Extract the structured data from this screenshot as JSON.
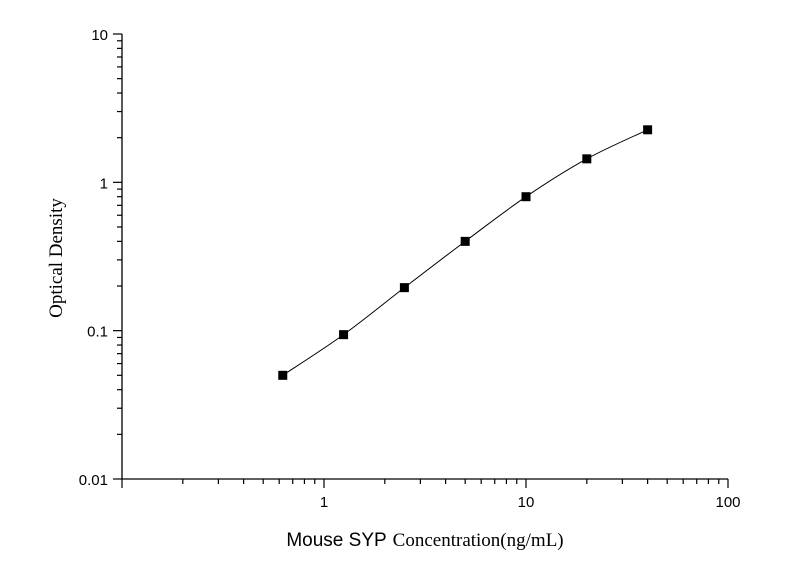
{
  "chart_data": {
    "type": "scatter",
    "xlabel_main": "Mouse SYP",
    "xlabel_sub": "Concentration(ng/mL)",
    "ylabel": "Optical Density",
    "xscale": "log",
    "yscale": "log",
    "xlim": [
      0.1,
      100
    ],
    "ylim": [
      0.01,
      10
    ],
    "x_tick_labels": [
      {
        "value": 1,
        "label": "1"
      },
      {
        "value": 10,
        "label": "10"
      },
      {
        "value": 100,
        "label": "100"
      }
    ],
    "y_tick_labels": [
      {
        "value": 0.01,
        "label": "0.01"
      },
      {
        "value": 0.1,
        "label": "0.1"
      },
      {
        "value": 1,
        "label": "1"
      },
      {
        "value": 10,
        "label": "10"
      }
    ],
    "grid": false,
    "legend": false,
    "marker": "square",
    "series": [
      {
        "x": [
          0.625,
          1.25,
          2.5,
          5,
          10,
          20,
          40
        ],
        "y": [
          0.05,
          0.094,
          0.195,
          0.4,
          0.8,
          1.44,
          2.26
        ],
        "fit_curve": true
      }
    ],
    "colors": {
      "axis": "#000000",
      "marker": "#000000",
      "curve": "#000000"
    }
  }
}
